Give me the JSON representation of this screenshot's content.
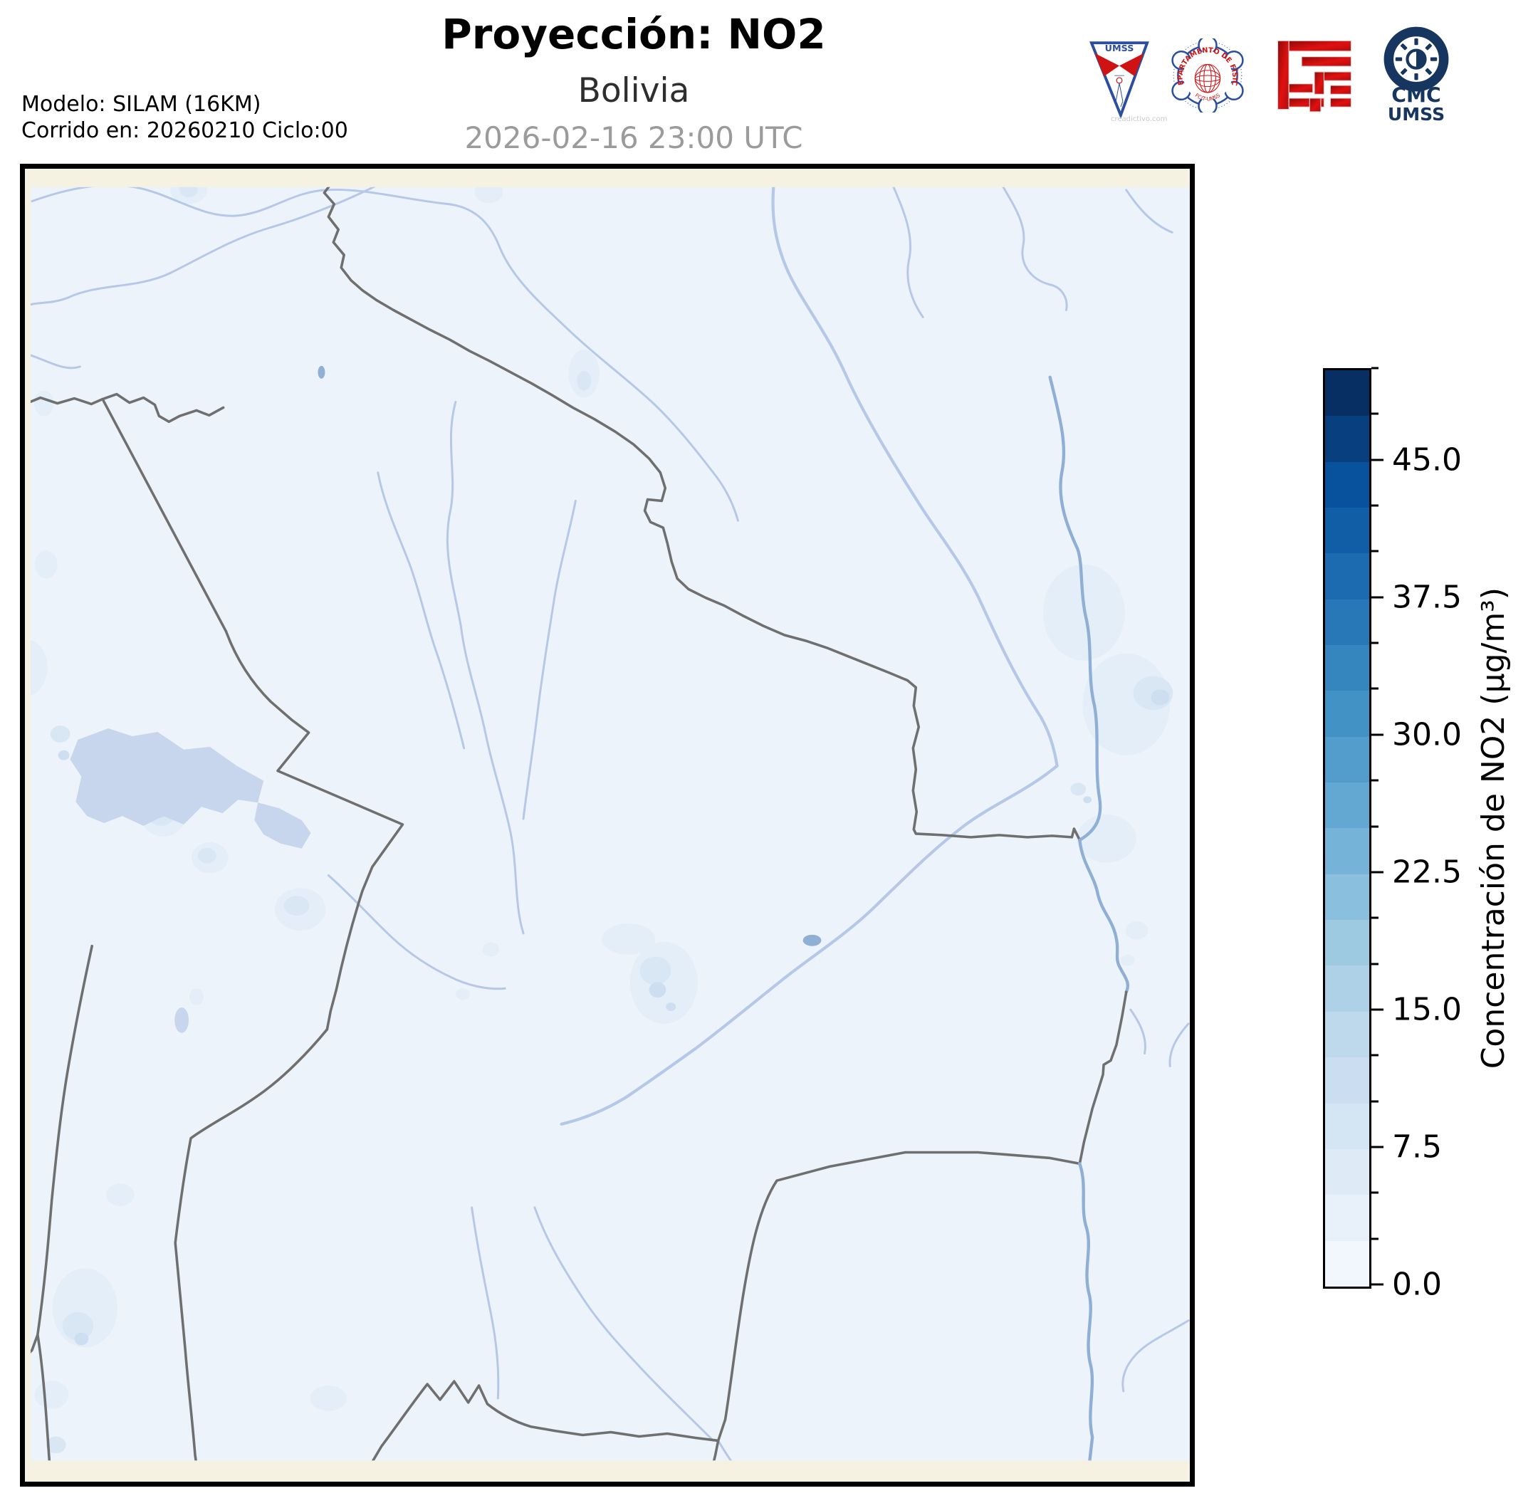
{
  "header": {
    "title": "Proyección: NO2",
    "subtitle": "Bolivia",
    "datetime": "2026-02-16 23:00 UTC",
    "model_line1": "Modelo: SILAM (16KM)",
    "model_line2": "Corrido en: 20260210 Ciclo:00"
  },
  "logos": {
    "umss_pennant_text": "UMSS",
    "fisica_seal_text_top": "DEPARTAMENTO DE FÍSICA",
    "fisica_seal_text_bottom": "FC/T-UMSS",
    "cmc_line1": "CMC",
    "cmc_line2": "UMSS",
    "watermark": "creadictivo.com"
  },
  "colorbar": {
    "label": "Concentración de NO2 (µg/m³)",
    "vmin": 0,
    "vmax": 50,
    "step": 2.5,
    "ticks": [
      {
        "value": 0,
        "label": "0.0"
      },
      {
        "value": 7.5,
        "label": "7.5"
      },
      {
        "value": 15,
        "label": "15.0"
      },
      {
        "value": 22.5,
        "label": "22.5"
      },
      {
        "value": 30,
        "label": "30.0"
      },
      {
        "value": 37.5,
        "label": "37.5"
      },
      {
        "value": 45,
        "label": "45.0"
      }
    ],
    "colors": [
      "#f2f7fd",
      "#e8f1fa",
      "#deebf7",
      "#d4e5f4",
      "#cbdef1",
      "#bed8ec",
      "#aed1e7",
      "#9ecae1",
      "#8abfdd",
      "#75b4d8",
      "#63a8d3",
      "#529dcc",
      "#4292c6",
      "#3585bf",
      "#2878b8",
      "#1c6bb0",
      "#125ea6",
      "#08519c",
      "#083f7f",
      "#082f63"
    ]
  },
  "palette": {
    "map_bg": "#edf3fb",
    "land_cream": "#f6f2e1",
    "border_gray": "#6f6f6f",
    "river_blue": "#b5c8e7",
    "river_dark": "#8fafd4",
    "lake_blue": "#c7d6ec",
    "no2_l1": "#e4eef8",
    "no2_l2": "#d9e6f4",
    "no2_l3": "#cddef0",
    "logo_navy": "#16355f",
    "logo_blue": "#2b4ea0",
    "logo_red": "#cf1212"
  }
}
